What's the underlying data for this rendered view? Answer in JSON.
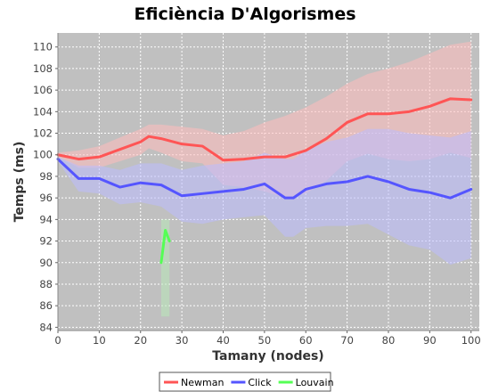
{
  "chart_data": {
    "type": "line",
    "title": "Eficiència D'Algorismes",
    "xlabel": "Tamany (nodes)",
    "ylabel": "Temps (ms)",
    "xlim": [
      0,
      102
    ],
    "ylim": [
      83.7,
      111.3
    ],
    "xticks": [
      0,
      10,
      20,
      30,
      40,
      50,
      60,
      70,
      80,
      90,
      100
    ],
    "yticks": [
      84,
      86,
      88,
      90,
      92,
      94,
      96,
      98,
      100,
      102,
      104,
      106,
      108,
      110
    ],
    "grid": true,
    "legend_position": "bottom",
    "plot_background": "#c0c0c0",
    "series": [
      {
        "name": "Newman",
        "color": "#ff5555",
        "band_color": "#ffbbbb",
        "x": [
          0,
          5,
          10,
          15,
          20,
          22,
          25,
          30,
          35,
          40,
          45,
          50,
          55,
          60,
          65,
          70,
          75,
          80,
          85,
          90,
          95,
          100
        ],
        "y": [
          100.0,
          99.6,
          99.8,
          100.5,
          101.2,
          101.7,
          101.5,
          101.0,
          100.8,
          99.5,
          99.6,
          99.8,
          99.8,
          100.4,
          101.5,
          103.0,
          103.8,
          103.8,
          104.0,
          104.5,
          105.2,
          105.1
        ],
        "upper": [
          100.2,
          100.4,
          100.8,
          101.6,
          102.4,
          102.8,
          102.8,
          102.6,
          102.4,
          101.8,
          102.2,
          103.0,
          103.6,
          104.4,
          105.4,
          106.6,
          107.5,
          108.0,
          108.6,
          109.4,
          110.2,
          110.5
        ],
        "lower": [
          99.8,
          98.8,
          98.8,
          99.4,
          100.0,
          100.6,
          100.2,
          99.4,
          99.2,
          97.2,
          97.0,
          96.6,
          96.0,
          96.4,
          97.6,
          99.4,
          100.1,
          99.6,
          99.4,
          99.6,
          100.2,
          99.7
        ]
      },
      {
        "name": "Click",
        "color": "#5555ff",
        "band_color": "#bbbbff",
        "x": [
          0,
          5,
          10,
          15,
          20,
          25,
          30,
          35,
          40,
          45,
          50,
          55,
          57,
          60,
          65,
          70,
          75,
          80,
          85,
          90,
          95,
          100
        ],
        "y": [
          99.6,
          97.8,
          97.8,
          97.0,
          97.4,
          97.2,
          96.2,
          96.4,
          96.6,
          96.8,
          97.3,
          96.0,
          96.0,
          96.8,
          97.3,
          97.5,
          98.0,
          97.5,
          96.8,
          96.5,
          96.0,
          96.8
        ],
        "upper": [
          99.8,
          99.0,
          99.0,
          98.6,
          99.2,
          99.2,
          98.6,
          99.0,
          99.2,
          99.4,
          100.2,
          99.6,
          99.6,
          100.4,
          101.2,
          101.6,
          102.4,
          102.4,
          102.0,
          101.8,
          101.6,
          102.2
        ],
        "lower": [
          99.4,
          96.6,
          96.4,
          95.4,
          95.6,
          95.2,
          93.8,
          93.6,
          94.0,
          94.2,
          94.4,
          92.4,
          92.4,
          93.2,
          93.4,
          93.4,
          93.6,
          92.6,
          91.6,
          91.2,
          89.8,
          90.4
        ]
      },
      {
        "name": "Louvain",
        "color": "#55ff55",
        "band_color": "#b8e8b8",
        "x": [
          25,
          26,
          27
        ],
        "y": [
          90.0,
          93.0,
          92.0
        ],
        "upper": [
          94.0,
          94.0,
          94.0
        ],
        "lower": [
          85.0,
          85.0,
          85.0
        ]
      }
    ]
  }
}
